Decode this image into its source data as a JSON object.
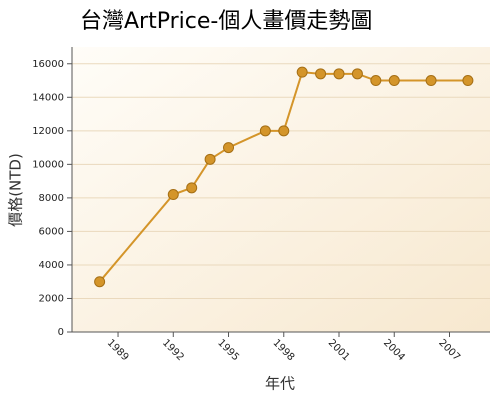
{
  "chart_data": {
    "type": "line",
    "title": "台灣ArtPrice-個人畫價走勢圖",
    "x_label": "年代",
    "y_label": "價格(NTD)",
    "series": [
      {
        "name": "價格",
        "color": "#d4952a",
        "x": [
          1988,
          1992,
          1993,
          1994,
          1995,
          1997,
          1998,
          1999,
          2000,
          2001,
          2002,
          2003,
          2004,
          2006,
          2008
        ],
        "values": [
          3000,
          8200,
          8600,
          10300,
          11000,
          12000,
          12000,
          15500,
          15400,
          15400,
          15400,
          15000,
          15000,
          15000,
          15000
        ]
      }
    ],
    "xlim": [
      1986.5,
      2009.2
    ],
    "xticks": [
      1989,
      1992,
      1995,
      1998,
      2001,
      2004,
      2007
    ],
    "ylim": [
      0,
      17000
    ],
    "yticks": [
      0,
      2000,
      4000,
      6000,
      8000,
      10000,
      12000,
      14000,
      16000
    ],
    "grid": true
  }
}
